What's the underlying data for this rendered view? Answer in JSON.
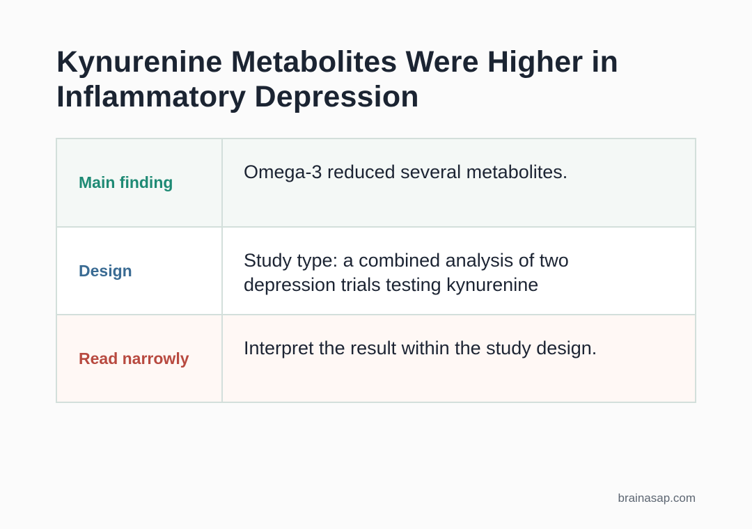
{
  "title": "Kynurenine Metabolites Were Higher in Inflammatory Depression",
  "rows": [
    {
      "label": "Main finding",
      "value": "Omega-3 reduced several metabolites.",
      "label_color": "#1e8a74",
      "background": "#f4f8f6"
    },
    {
      "label": "Design",
      "value": "Study type: a combined analysis of two depression trials testing kynurenine",
      "label_color": "#3a6b93",
      "background": "#ffffff"
    },
    {
      "label": "Read narrowly",
      "value": "Interpret the result within the study design.",
      "label_color": "#b84a40",
      "background": "#fff8f5"
    }
  ],
  "footer": {
    "site": "brainasap.com"
  },
  "colors": {
    "title": "#1b2432",
    "border": "#d3dfdb",
    "page_background": "#fbfbfb"
  }
}
